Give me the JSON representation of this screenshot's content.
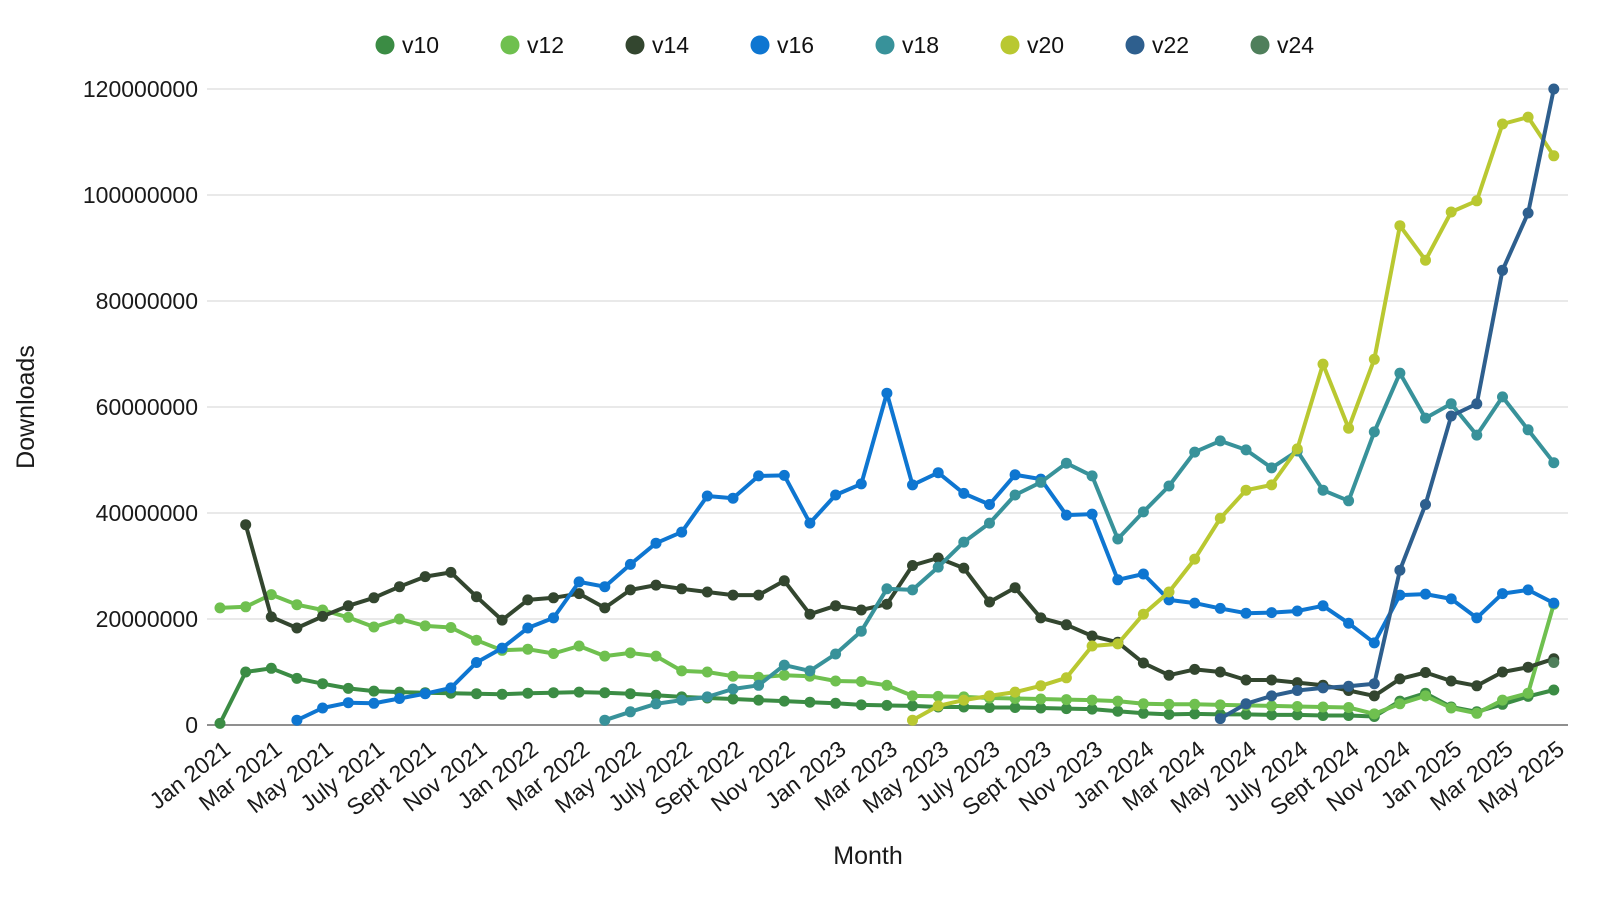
{
  "chart_data": {
    "type": "line",
    "title": "",
    "xlabel": "Month",
    "ylabel": "Downloads",
    "values_unit": "millions_of_downloads",
    "x_range": "Jan 2021 to May 2025, monthly (53 points), tick labels every 2 months",
    "x_labels": [
      "Jan 2021",
      "Mar 2021",
      "May 2021",
      "July 2021",
      "Sept 2021",
      "Nov 2021",
      "Jan 2022",
      "Mar 2022",
      "May 2022",
      "July 2022",
      "Sept 2022",
      "Nov 2022",
      "Jan 2023",
      "Mar 2023",
      "May 2023",
      "July 2023",
      "Sept 2023",
      "Nov 2023",
      "Jan 2024",
      "Mar 2024",
      "May 2024",
      "July 2024",
      "Sept 2024",
      "Nov 2024",
      "Jan 2025",
      "Mar 2025",
      "May 2025"
    ],
    "y_ticks": [
      0,
      20000000,
      40000000,
      60000000,
      80000000,
      100000000,
      120000000
    ],
    "ylim": [
      0,
      120000000
    ],
    "grid": "horizontal",
    "legend_position": "top-center",
    "series": [
      {
        "name": "v10",
        "color": "#3b8c44",
        "values_millions": [
          0.3,
          10.0,
          10.7,
          8.8,
          7.8,
          6.9,
          6.4,
          6.2,
          6.1,
          6.0,
          5.9,
          5.8,
          6.0,
          6.1,
          6.2,
          6.1,
          5.9,
          5.6,
          5.3,
          5.1,
          4.9,
          4.7,
          4.5,
          4.3,
          4.1,
          3.8,
          3.7,
          3.6,
          3.4,
          3.4,
          3.3,
          3.3,
          3.2,
          3.1,
          3.0,
          2.6,
          2.2,
          2.0,
          2.1,
          2.0,
          2.0,
          1.9,
          1.9,
          1.8,
          1.8,
          1.6,
          4.5,
          6.0,
          3.4,
          2.5,
          3.9,
          5.4,
          6.6
        ]
      },
      {
        "name": "v12",
        "color": "#6fc04f",
        "values_millions": [
          22.1,
          22.3,
          24.6,
          22.7,
          21.7,
          20.3,
          18.5,
          20.0,
          18.7,
          18.4,
          16.0,
          14.1,
          14.3,
          13.5,
          14.9,
          13.0,
          13.6,
          13.0,
          10.2,
          10.0,
          9.2,
          9.0,
          9.4,
          9.2,
          8.3,
          8.2,
          7.5,
          5.5,
          5.4,
          5.3,
          5.1,
          5.0,
          4.9,
          4.8,
          4.7,
          4.5,
          4.0,
          3.9,
          3.9,
          3.8,
          3.7,
          3.6,
          3.5,
          3.4,
          3.3,
          2.1,
          4.0,
          5.5,
          3.2,
          2.2,
          4.7,
          6.0,
          22.8
        ]
      },
      {
        "name": "v14",
        "color": "#33462f",
        "values_millions": [
          null,
          37.8,
          20.4,
          18.3,
          20.5,
          22.5,
          24.0,
          26.1,
          28.0,
          28.8,
          24.2,
          19.8,
          23.6,
          24.0,
          24.8,
          22.1,
          25.5,
          26.4,
          25.7,
          25.1,
          24.5,
          24.5,
          27.2,
          20.9,
          22.5,
          21.7,
          22.8,
          30.1,
          31.5,
          29.6,
          23.2,
          25.9,
          20.2,
          18.9,
          16.8,
          15.6,
          11.7,
          9.4,
          10.5,
          10.0,
          8.5,
          8.5,
          8.0,
          7.5,
          6.5,
          5.5,
          8.7,
          9.9,
          8.3,
          7.4,
          10.0,
          10.9,
          12.5
        ]
      },
      {
        "name": "v16",
        "color": "#0e76d1",
        "values_millions": [
          null,
          null,
          null,
          0.9,
          3.2,
          4.2,
          4.1,
          5.0,
          5.9,
          7.0,
          11.8,
          14.5,
          18.3,
          20.2,
          27.0,
          26.1,
          30.3,
          34.3,
          36.4,
          43.2,
          42.8,
          47.0,
          47.1,
          38.1,
          43.4,
          45.5,
          62.6,
          45.3,
          47.6,
          43.7,
          41.6,
          47.2,
          46.4,
          39.6,
          39.8,
          27.4,
          28.5,
          23.6,
          23.0,
          22.0,
          21.1,
          21.2,
          21.5,
          22.5,
          19.2,
          15.5,
          24.5,
          24.7,
          23.8,
          20.2,
          24.8,
          25.5,
          23.0
        ]
      },
      {
        "name": "v18",
        "color": "#38929a",
        "values_millions": [
          null,
          null,
          null,
          null,
          null,
          null,
          null,
          null,
          null,
          null,
          null,
          null,
          null,
          null,
          null,
          0.9,
          2.5,
          4.0,
          4.7,
          5.3,
          6.8,
          7.5,
          11.3,
          10.2,
          13.4,
          17.7,
          25.7,
          25.5,
          29.8,
          34.5,
          38.1,
          43.4,
          45.8,
          49.4,
          47.0,
          35.1,
          40.2,
          45.1,
          51.5,
          53.6,
          51.9,
          48.5,
          51.7,
          44.3,
          42.3,
          55.3,
          66.4,
          57.9,
          60.6,
          54.7,
          61.9,
          55.7,
          49.5
        ]
      },
      {
        "name": "v20",
        "color": "#b9c831",
        "values_millions": [
          null,
          null,
          null,
          null,
          null,
          null,
          null,
          null,
          null,
          null,
          null,
          null,
          null,
          null,
          null,
          null,
          null,
          null,
          null,
          null,
          null,
          null,
          null,
          null,
          null,
          null,
          null,
          0.9,
          3.6,
          4.7,
          5.5,
          6.2,
          7.4,
          8.9,
          14.9,
          15.3,
          20.9,
          25.1,
          31.3,
          39.0,
          44.3,
          45.3,
          52.1,
          68.1,
          56.0,
          69.0,
          94.2,
          87.7,
          96.8,
          98.9,
          113.4,
          114.7,
          107.4
        ]
      },
      {
        "name": "v22",
        "color": "#2e5f8e",
        "values_millions": [
          null,
          null,
          null,
          null,
          null,
          null,
          null,
          null,
          null,
          null,
          null,
          null,
          null,
          null,
          null,
          null,
          null,
          null,
          null,
          null,
          null,
          null,
          null,
          null,
          null,
          null,
          null,
          null,
          null,
          null,
          null,
          null,
          null,
          null,
          null,
          null,
          null,
          null,
          null,
          1.2,
          4.0,
          5.5,
          6.5,
          7.0,
          7.3,
          7.8,
          29.2,
          41.6,
          58.3,
          60.6,
          85.8,
          96.6,
          120.0
        ]
      },
      {
        "name": "v24",
        "color": "#4f7f5b",
        "values_millions": [
          null,
          null,
          null,
          null,
          null,
          null,
          null,
          null,
          null,
          null,
          null,
          null,
          null,
          null,
          null,
          null,
          null,
          null,
          null,
          null,
          null,
          null,
          null,
          null,
          null,
          null,
          null,
          null,
          null,
          null,
          null,
          null,
          null,
          null,
          null,
          null,
          null,
          null,
          null,
          null,
          null,
          null,
          null,
          null,
          null,
          null,
          null,
          null,
          null,
          null,
          null,
          null,
          11.8
        ]
      }
    ]
  }
}
